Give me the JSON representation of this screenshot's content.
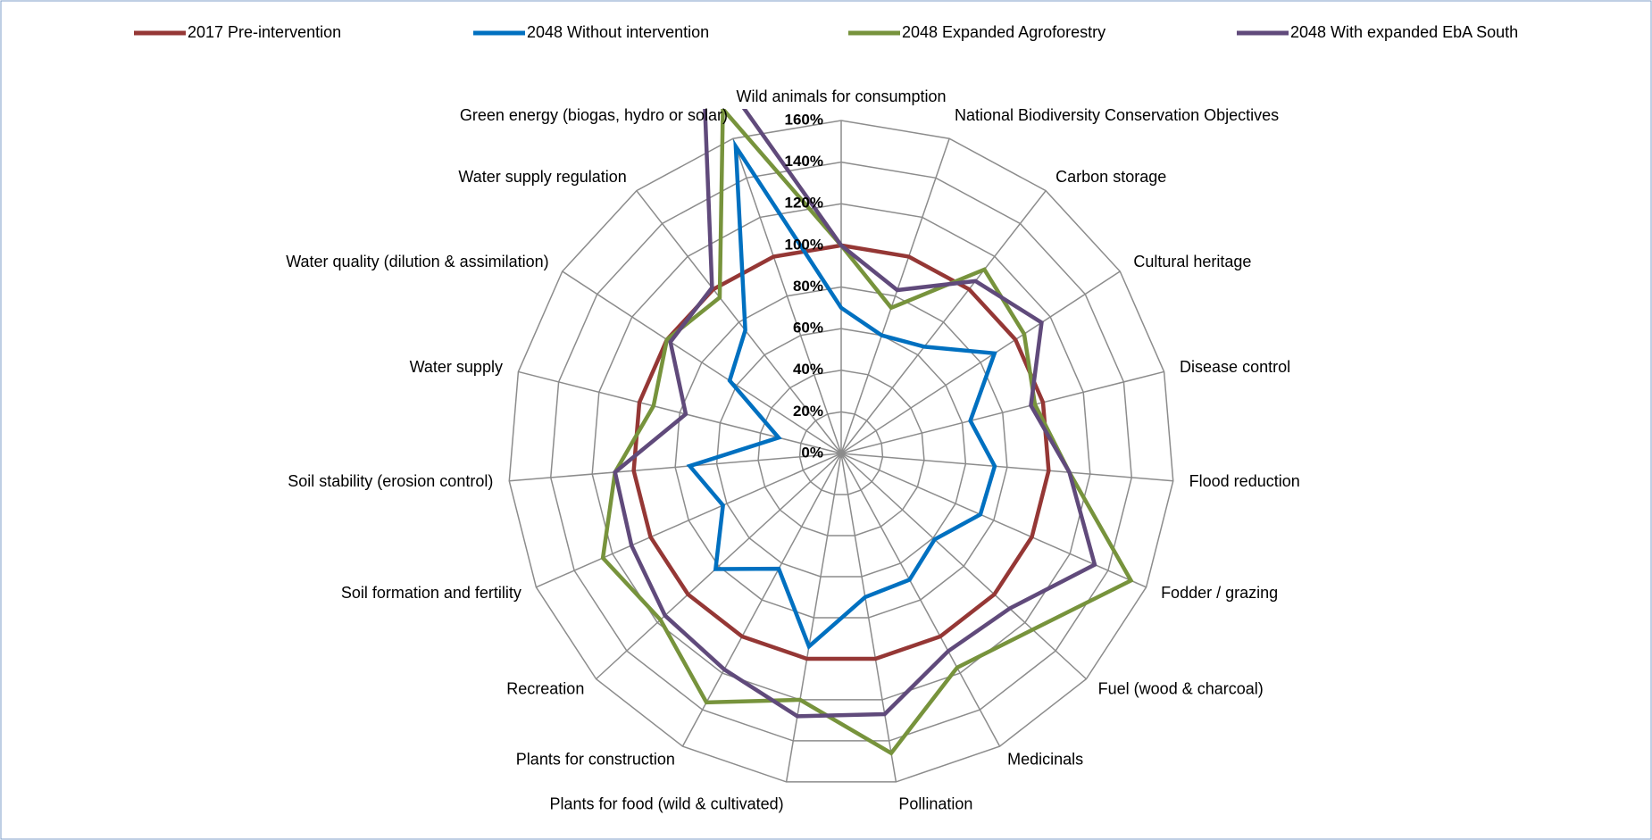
{
  "chart_data": {
    "type": "radar",
    "categories": [
      "Wild animals for consumption",
      "National Biodiversity Conservation Objectives",
      "Carbon storage",
      "Cultural heritage",
      "Disease control",
      "Flood reduction",
      "Fodder / grazing",
      "Fuel (wood & charcoal)",
      "Medicinals",
      "Pollination",
      "Plants for food (wild & cultivated)",
      "Plants for construction",
      "Recreation",
      "Soil formation and fertility",
      "Soil stability (erosion control)",
      "Water supply",
      "Water quality (dilution & assimilation)",
      "Water supply regulation",
      "Green energy (biogas, hydro or solar)"
    ],
    "series": [
      {
        "name": "2017 Pre-intervention",
        "color": "#953735",
        "values": [
          100,
          100,
          100,
          100,
          100,
          100,
          100,
          100,
          100,
          100,
          100,
          100,
          100,
          100,
          100,
          100,
          100,
          100,
          100
        ]
      },
      {
        "name": "2048 Without intervention",
        "color": "#0070c0",
        "values": [
          70,
          60,
          65,
          88,
          64,
          74,
          73,
          61,
          69,
          70,
          94,
          63,
          82,
          62,
          73,
          31,
          64,
          75,
          156
        ]
      },
      {
        "name": "2048 Expanded Agroforestry",
        "color": "#77933c",
        "values": [
          100,
          74,
          112,
          105,
          96,
          110,
          152,
          125,
          117,
          146,
          120,
          136,
          118,
          125,
          109,
          93,
          100,
          95,
          175
        ]
      },
      {
        "name": "2048 With expanded EbA South",
        "color": "#604a7b",
        "values": [
          100,
          83,
          105,
          115,
          94,
          110,
          133,
          110,
          108,
          127,
          128,
          118,
          115,
          110,
          109,
          77,
          98,
          101,
          205
        ]
      }
    ],
    "rlim": [
      0,
      160
    ],
    "rticks": [
      {
        "value": 0,
        "label": "0%"
      },
      {
        "value": 20,
        "label": "20%"
      },
      {
        "value": 40,
        "label": "40%"
      },
      {
        "value": 60,
        "label": "60%"
      },
      {
        "value": 80,
        "label": "80%"
      },
      {
        "value": 100,
        "label": "100%"
      },
      {
        "value": 120,
        "label": "120%"
      },
      {
        "value": 140,
        "label": "140%"
      },
      {
        "value": 160,
        "label": "160%"
      }
    ],
    "grid": true,
    "legend": "top"
  }
}
